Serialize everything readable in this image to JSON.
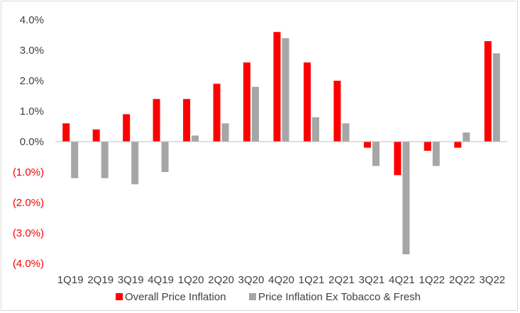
{
  "chart_data": {
    "type": "bar",
    "categories": [
      "1Q19",
      "2Q19",
      "3Q19",
      "4Q19",
      "1Q20",
      "2Q20",
      "3Q20",
      "4Q20",
      "1Q21",
      "2Q21",
      "3Q21",
      "4Q21",
      "1Q22",
      "2Q22",
      "3Q22"
    ],
    "series": [
      {
        "name": "Overall Price Inflation",
        "color": "#ff0000",
        "values": [
          0.6,
          0.4,
          0.9,
          1.4,
          1.4,
          1.9,
          2.6,
          3.6,
          2.6,
          2.0,
          -0.2,
          -1.1,
          -0.3,
          -0.2,
          3.3
        ]
      },
      {
        "name": "Price Inflation Ex Tobacco & Fresh",
        "color": "#a6a6a6",
        "values": [
          -1.2,
          -1.2,
          -1.4,
          -1.0,
          0.2,
          0.6,
          1.8,
          3.4,
          0.8,
          0.6,
          -0.8,
          -3.7,
          -0.8,
          0.3,
          2.9
        ]
      }
    ],
    "ylim": [
      -4.0,
      4.0
    ],
    "yticks": [
      4.0,
      3.0,
      2.0,
      1.0,
      0.0,
      -1.0,
      -2.0,
      -3.0,
      -4.0
    ],
    "ytick_labels": [
      "4.0%",
      "3.0%",
      "2.0%",
      "1.0%",
      "0.0%",
      "(1.0%)",
      "(2.0%)",
      "(3.0%)",
      "(4.0%)"
    ],
    "ytick_colors": {
      "positive": "#404040",
      "negative": "#ff0000"
    },
    "title": "",
    "xlabel": "",
    "ylabel": "",
    "grid": false,
    "legend": "bottom-center"
  }
}
